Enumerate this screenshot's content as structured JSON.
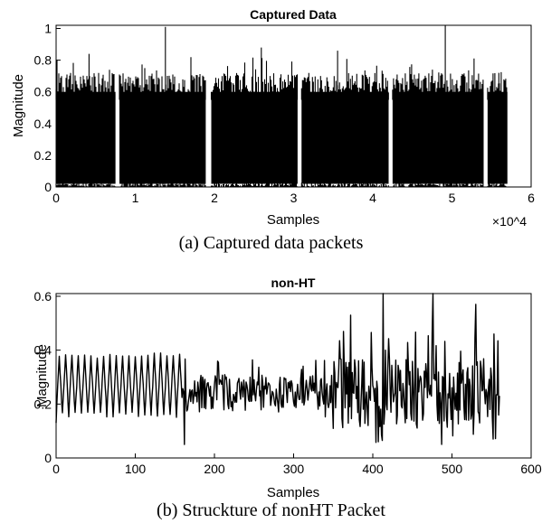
{
  "chart_data": [
    {
      "type": "line",
      "title": "Captured Data",
      "xlabel": "Samples",
      "ylabel": "Magnitude",
      "xlim": [
        0,
        60000
      ],
      "ylim": [
        0,
        1.02
      ],
      "x_ticks": [
        0,
        10000,
        20000,
        30000,
        40000,
        50000,
        60000
      ],
      "x_tick_labels": [
        "0",
        "1",
        "2",
        "3",
        "4",
        "5",
        "6"
      ],
      "x_exponent": "×10^4",
      "y_ticks": [
        0,
        0.2,
        0.4,
        0.6,
        0.8,
        1
      ],
      "y_tick_labels": [
        "0",
        "0.2",
        "0.4",
        "0.6",
        "0.8",
        "1"
      ],
      "grid": false,
      "series": [
        {
          "color": "#000000",
          "packets": [
            {
              "start": 0,
              "end": 7500,
              "peak": 0.84
            },
            {
              "start": 8000,
              "end": 18900,
              "peak": 1.01
            },
            {
              "start": 19600,
              "end": 30500,
              "peak": 0.88
            },
            {
              "start": 31000,
              "end": 42000,
              "peak": 0.86
            },
            {
              "start": 42500,
              "end": 54000,
              "peak": 1.02
            },
            {
              "start": 54500,
              "end": 57000,
              "peak": 0.72
            }
          ]
        }
      ],
      "caption": "(a) Captured data packets"
    },
    {
      "type": "line",
      "title": "non-HT",
      "xlabel": "Samples",
      "ylabel": "Magnitude",
      "xlim": [
        0,
        600
      ],
      "ylim": [
        0,
        0.61
      ],
      "x_ticks": [
        0,
        100,
        200,
        300,
        400,
        500,
        600
      ],
      "x_tick_labels": [
        "0",
        "100",
        "200",
        "300",
        "400",
        "500",
        "600"
      ],
      "y_ticks": [
        0,
        0.2,
        0.4,
        0.6
      ],
      "y_tick_labels": [
        "0",
        "0.2",
        "0.4",
        "0.6"
      ],
      "grid": false,
      "series": [
        {
          "color": "#000000",
          "x_range": [
            0,
            560
          ],
          "short_training_period": 8,
          "short_training_end": 160,
          "notable_points": [
            {
              "x": 162,
              "y": 0.05
            },
            {
              "x": 372,
              "y": 0.53
            },
            {
              "x": 413,
              "y": 0.61
            },
            {
              "x": 476,
              "y": 0.61
            },
            {
              "x": 530,
              "y": 0.57
            },
            {
              "x": 553,
              "y": 0.46
            }
          ]
        }
      ],
      "caption": "(b) Struckture of nonHT Packet"
    }
  ]
}
